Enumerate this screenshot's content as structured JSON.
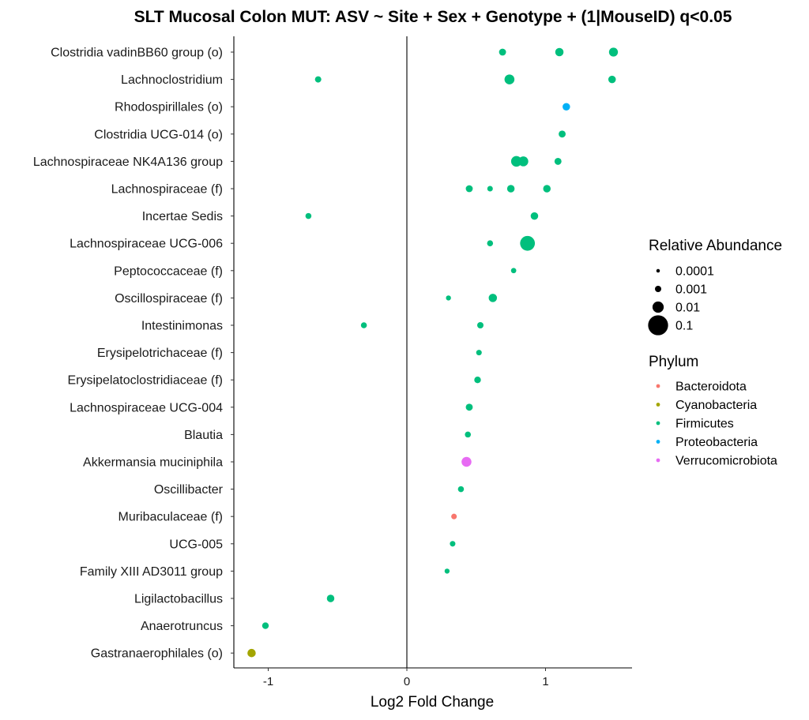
{
  "chart_data": {
    "type": "scatter",
    "title": "SLT Mucosal Colon MUT: ASV ~ Site + Sex + Genotype + (1|MouseID) q<0.05",
    "xlabel": "Log2 Fold Change",
    "ylabel": "",
    "xlim": [
      -1.25,
      1.62
    ],
    "xticks": [
      -1,
      0,
      1
    ],
    "xtick_labels": [
      "-1",
      "0",
      "1"
    ],
    "grid": false,
    "reference_line_x": 0,
    "categories": [
      "Clostridia vadinBB60 group (o)",
      "Lachnoclostridium",
      "Rhodospirillales (o)",
      "Clostridia UCG-014 (o)",
      "Lachnospiraceae NK4A136 group",
      "Lachnospiraceae (f)",
      "Incertae Sedis",
      "Lachnospiraceae UCG-006",
      "Peptococcaceae (f)",
      "Oscillospiraceae (f)",
      "Intestinimonas",
      "Erysipelotrichaceae (f)",
      "Erysipelatoclostridiaceae (f)",
      "Lachnospiraceae UCG-004",
      "Blautia",
      "Akkermansia muciniphila",
      "Oscillibacter",
      "Muribaculaceae (f)",
      "UCG-005",
      "Family XIII AD3011 group",
      "Ligilactobacillus",
      "Anaerotruncus",
      "Gastranaerophilales (o)"
    ],
    "points": [
      {
        "taxon": "Clostridia vadinBB60 group (o)",
        "lfc": 0.69,
        "abundance": 0.0015,
        "phylum": "Firmicutes"
      },
      {
        "taxon": "Clostridia vadinBB60 group (o)",
        "lfc": 1.1,
        "abundance": 0.003,
        "phylum": "Firmicutes"
      },
      {
        "taxon": "Clostridia vadinBB60 group (o)",
        "lfc": 1.49,
        "abundance": 0.004,
        "phylum": "Firmicutes"
      },
      {
        "taxon": "Lachnoclostridium",
        "lfc": -0.64,
        "abundance": 0.001,
        "phylum": "Firmicutes"
      },
      {
        "taxon": "Lachnoclostridium",
        "lfc": 0.74,
        "abundance": 0.006,
        "phylum": "Firmicutes"
      },
      {
        "taxon": "Lachnoclostridium",
        "lfc": 1.48,
        "abundance": 0.002,
        "phylum": "Firmicutes"
      },
      {
        "taxon": "Rhodospirillales (o)",
        "lfc": 1.15,
        "abundance": 0.002,
        "phylum": "Proteobacteria"
      },
      {
        "taxon": "Clostridia UCG-014 (o)",
        "lfc": 1.12,
        "abundance": 0.0015,
        "phylum": "Firmicutes"
      },
      {
        "taxon": "Lachnospiraceae NK4A136 group",
        "lfc": 0.79,
        "abundance": 0.008,
        "phylum": "Firmicutes"
      },
      {
        "taxon": "Lachnospiraceae NK4A136 group",
        "lfc": 0.84,
        "abundance": 0.006,
        "phylum": "Firmicutes"
      },
      {
        "taxon": "Lachnospiraceae NK4A136 group",
        "lfc": 1.09,
        "abundance": 0.0015,
        "phylum": "Firmicutes"
      },
      {
        "taxon": "Lachnospiraceae (f)",
        "lfc": 0.45,
        "abundance": 0.0015,
        "phylum": "Firmicutes"
      },
      {
        "taxon": "Lachnospiraceae (f)",
        "lfc": 0.6,
        "abundance": 0.0006,
        "phylum": "Firmicutes"
      },
      {
        "taxon": "Lachnospiraceae (f)",
        "lfc": 0.75,
        "abundance": 0.002,
        "phylum": "Firmicutes"
      },
      {
        "taxon": "Lachnospiraceae (f)",
        "lfc": 1.01,
        "abundance": 0.002,
        "phylum": "Firmicutes"
      },
      {
        "taxon": "Incertae Sedis",
        "lfc": -0.71,
        "abundance": 0.0008,
        "phylum": "Firmicutes"
      },
      {
        "taxon": "Incertae Sedis",
        "lfc": 0.92,
        "abundance": 0.002,
        "phylum": "Firmicutes"
      },
      {
        "taxon": "Lachnospiraceae UCG-006",
        "lfc": 0.6,
        "abundance": 0.0008,
        "phylum": "Firmicutes"
      },
      {
        "taxon": "Lachnospiraceae UCG-006",
        "lfc": 0.87,
        "abundance": 0.03,
        "phylum": "Firmicutes"
      },
      {
        "taxon": "Peptococcaceae (f)",
        "lfc": 0.77,
        "abundance": 0.0005,
        "phylum": "Firmicutes"
      },
      {
        "taxon": "Oscillospiraceae (f)",
        "lfc": 0.3,
        "abundance": 0.0004,
        "phylum": "Firmicutes"
      },
      {
        "taxon": "Oscillospiraceae (f)",
        "lfc": 0.62,
        "abundance": 0.003,
        "phylum": "Firmicutes"
      },
      {
        "taxon": "Intestinimonas",
        "lfc": -0.31,
        "abundance": 0.0008,
        "phylum": "Firmicutes"
      },
      {
        "taxon": "Intestinimonas",
        "lfc": 0.53,
        "abundance": 0.001,
        "phylum": "Firmicutes"
      },
      {
        "taxon": "Erysipelotrichaceae (f)",
        "lfc": 0.52,
        "abundance": 0.0006,
        "phylum": "Firmicutes"
      },
      {
        "taxon": "Erysipelatoclostridiaceae (f)",
        "lfc": 0.51,
        "abundance": 0.0012,
        "phylum": "Firmicutes"
      },
      {
        "taxon": "Lachnospiraceae UCG-004",
        "lfc": 0.45,
        "abundance": 0.0015,
        "phylum": "Firmicutes"
      },
      {
        "taxon": "Blautia",
        "lfc": 0.44,
        "abundance": 0.0008,
        "phylum": "Firmicutes"
      },
      {
        "taxon": "Akkermansia muciniphila",
        "lfc": 0.43,
        "abundance": 0.006,
        "phylum": "Verrucomicrobiota"
      },
      {
        "taxon": "Oscillibacter",
        "lfc": 0.39,
        "abundance": 0.0008,
        "phylum": "Firmicutes"
      },
      {
        "taxon": "Muribaculaceae (f)",
        "lfc": 0.34,
        "abundance": 0.0006,
        "phylum": "Bacteroidota"
      },
      {
        "taxon": "UCG-005",
        "lfc": 0.33,
        "abundance": 0.0006,
        "phylum": "Firmicutes"
      },
      {
        "taxon": "Family XIII AD3011 group",
        "lfc": 0.29,
        "abundance": 0.0004,
        "phylum": "Firmicutes"
      },
      {
        "taxon": "Ligilactobacillus",
        "lfc": -0.55,
        "abundance": 0.002,
        "phylum": "Firmicutes"
      },
      {
        "taxon": "Anaerotruncus",
        "lfc": -1.02,
        "abundance": 0.0012,
        "phylum": "Firmicutes"
      },
      {
        "taxon": "Gastranaerophilales (o)",
        "lfc": -1.12,
        "abundance": 0.003,
        "phylum": "Cyanobacteria"
      }
    ],
    "size_legend": {
      "title": "Relative Abundance",
      "entries": [
        {
          "label": "0.0001",
          "value": 0.0001
        },
        {
          "label": "0.001",
          "value": 0.001
        },
        {
          "label": "0.01",
          "value": 0.01
        },
        {
          "label": "0.1",
          "value": 0.1
        }
      ]
    },
    "color_legend": {
      "title": "Phylum",
      "entries": [
        {
          "label": "Bacteroidota",
          "color": "#F8766D"
        },
        {
          "label": "Cyanobacteria",
          "color": "#A3A500"
        },
        {
          "label": "Firmicutes",
          "color": "#00BF7D"
        },
        {
          "label": "Proteobacteria",
          "color": "#00B0F6"
        },
        {
          "label": "Verrucomicrobiota",
          "color": "#E76BF3"
        }
      ]
    },
    "legend_position": "right"
  }
}
